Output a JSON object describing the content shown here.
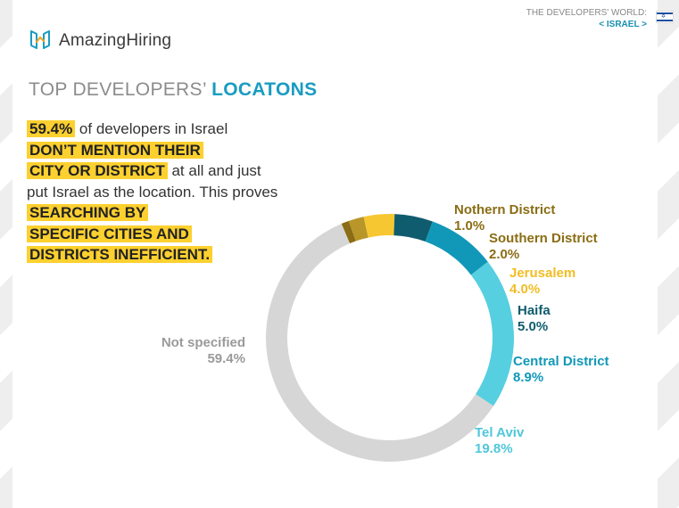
{
  "brand": {
    "name": "AmazingHiring"
  },
  "header": {
    "series_label": "THE DEVELOPERS' WORLD:",
    "country_label": "< ISRAEL >"
  },
  "page": {
    "title_plain": "TOP DEVELOPERS’ ",
    "title_accent": "LOCATONS"
  },
  "intro": {
    "stat": "59.4%",
    "text1": " of developers in Israel ",
    "hl1": "DON’T MENTION THEIR",
    "hl2": "CITY OR DISTRICT",
    "text2": " at all and just put Israel as the location. This proves ",
    "hl3": "SEARCHING BY",
    "hl4": "SPECIFIC CITIES AND",
    "hl5": "DISTRICTS INEFFICIENT."
  },
  "colors": {
    "accent": "#1a9cc1",
    "highlight": "#fcd02f",
    "brand_icon": "#1a9cc1"
  },
  "chart_data": {
    "type": "pie",
    "style": "donut",
    "labels": [
      "Not specified",
      "Nothern District",
      "Southern District",
      "Jerusalem",
      "Haifa",
      "Central District",
      "Tel Aviv"
    ],
    "values": [
      59.4,
      1.0,
      2.0,
      4.0,
      5.0,
      8.9,
      19.8
    ],
    "value_labels": [
      "59.4%",
      "1.0%",
      "2.0%",
      "4.0%",
      "5.0%",
      "8.9%",
      "19.8%"
    ],
    "colors": [
      "#d6d6d6",
      "#8a6d14",
      "#b8962a",
      "#f7c731",
      "#0f5c6e",
      "#1198b8",
      "#56cfe0"
    ]
  }
}
